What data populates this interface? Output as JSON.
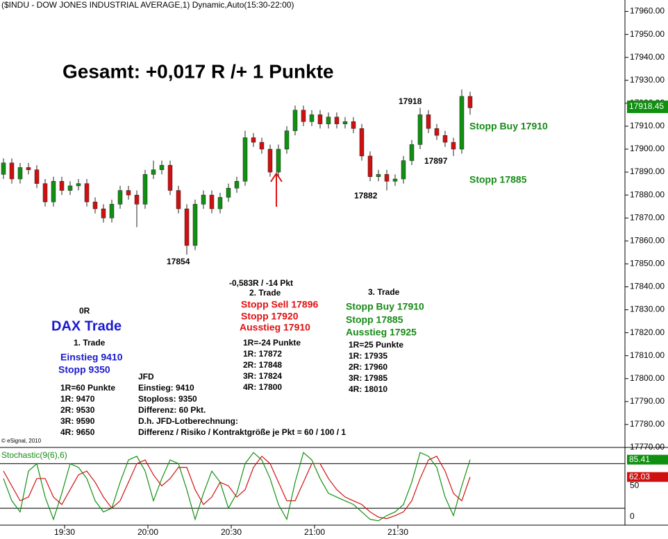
{
  "chart_data": [
    {
      "type": "candlestick",
      "title": "Gesamt: +0,017 R /+ 1 Punkte",
      "header": "($INDU - DOW JONES INDUSTRIAL AVERAGE,1) Dynamic,Auto(15:30-22:00)",
      "copyright": "© eSignal, 2010",
      "x": [
        "19:08",
        "19:11",
        "19:14",
        "19:17",
        "19:20",
        "19:23",
        "19:26",
        "19:29",
        "19:32",
        "19:35",
        "19:38",
        "19:41",
        "19:44",
        "19:47",
        "19:50",
        "19:53",
        "19:56",
        "19:59",
        "20:02",
        "20:05",
        "20:08",
        "20:11",
        "20:14",
        "20:17",
        "20:20",
        "20:23",
        "20:26",
        "20:29",
        "20:32",
        "20:35",
        "20:38",
        "20:41",
        "20:44",
        "20:47",
        "20:50",
        "20:53",
        "20:56",
        "20:59",
        "21:02",
        "21:05",
        "21:08",
        "21:11",
        "21:14",
        "21:17",
        "21:20",
        "21:23",
        "21:26",
        "21:29",
        "21:32",
        "21:35",
        "21:38",
        "21:41",
        "21:44",
        "21:47",
        "21:50",
        "21:53",
        "21:56"
      ],
      "open": [
        17889,
        17894,
        17887,
        17892,
        17891,
        17885,
        17877,
        17886,
        17882,
        17884,
        17885,
        17877,
        17874,
        17870,
        17876,
        17882,
        17880,
        17876,
        17889,
        17891,
        17893,
        17882,
        17874,
        17858,
        17876,
        17880,
        17874,
        17879,
        17883,
        17886,
        17905,
        17903,
        17900,
        17890,
        17900,
        17908,
        17917,
        17912,
        17915,
        17911,
        17914,
        17911,
        17912,
        17909,
        17897,
        17888,
        17889,
        17886,
        17887,
        17895,
        17902,
        17915,
        17909,
        17906,
        17903,
        17900,
        17923
      ],
      "high": [
        17896,
        17896,
        17894,
        17894,
        17893,
        17887,
        17888,
        17888,
        17886,
        17887,
        17887,
        17879,
        17876,
        17878,
        17884,
        17884,
        17882,
        17891,
        17895,
        17895,
        17895,
        17884,
        17876,
        17878,
        17882,
        17882,
        17881,
        17885,
        17888,
        17908,
        17907,
        17905,
        17902,
        17902,
        17910,
        17919,
        17919,
        17917,
        17917,
        17916,
        17916,
        17914,
        17914,
        17911,
        17899,
        17891,
        17891,
        17889,
        17897,
        17904,
        17918,
        17917,
        17911,
        17908,
        17905,
        17926,
        17925
      ],
      "low": [
        17887,
        17885,
        17885,
        17889,
        17883,
        17875,
        17875,
        17880,
        17880,
        17882,
        17875,
        17872,
        17868,
        17868,
        17874,
        17878,
        17866,
        17874,
        17887,
        17889,
        17880,
        17872,
        17854,
        17856,
        17874,
        17872,
        17872,
        17877,
        17881,
        17884,
        17901,
        17898,
        17888,
        17888,
        17898,
        17906,
        17910,
        17910,
        17909,
        17909,
        17909,
        17909,
        17907,
        17895,
        17886,
        17886,
        17882,
        17884,
        17885,
        17893,
        17900,
        17907,
        17904,
        17901,
        17897,
        17898,
        17915
      ],
      "close": [
        17894,
        17887,
        17892,
        17891,
        17885,
        17877,
        17886,
        17882,
        17884,
        17885,
        17877,
        17874,
        17870,
        17876,
        17882,
        17880,
        17876,
        17889,
        17891,
        17893,
        17882,
        17874,
        17858,
        17876,
        17880,
        17874,
        17879,
        17883,
        17886,
        17905,
        17903,
        17900,
        17890,
        17900,
        17908,
        17917,
        17912,
        17915,
        17911,
        17914,
        17911,
        17912,
        17909,
        17897,
        17888,
        17889,
        17886,
        17887,
        17895,
        17902,
        17915,
        17909,
        17906,
        17903,
        17900,
        17923,
        17918
      ],
      "up_color": "#109010",
      "down_color": "#d01010",
      "last_price": 17918.45,
      "ylim": [
        17770,
        17965
      ],
      "yticks": [
        {
          "value": 17960,
          "label": "17960.00"
        },
        {
          "value": 17950,
          "label": "17950.00"
        },
        {
          "value": 17940,
          "label": "17940.00"
        },
        {
          "value": 17930,
          "label": "17930.00"
        },
        {
          "value": 17920,
          "label": "17920.00"
        },
        {
          "value": 17910,
          "label": "17910.00"
        },
        {
          "value": 17900,
          "label": "17900.00"
        },
        {
          "value": 17890,
          "label": "17890.00"
        },
        {
          "value": 17880,
          "label": "17880.00"
        },
        {
          "value": 17870,
          "label": "17870.00"
        },
        {
          "value": 17860,
          "label": "17860.00"
        },
        {
          "value": 17850,
          "label": "17850.00"
        },
        {
          "value": 17840,
          "label": "17840.00"
        },
        {
          "value": 17830,
          "label": "17830.00"
        },
        {
          "value": 17820,
          "label": "17820.00"
        },
        {
          "value": 17810,
          "label": "17810.00"
        },
        {
          "value": 17800,
          "label": "17800.00"
        },
        {
          "value": 17790,
          "label": "17790.00"
        },
        {
          "value": 17780,
          "label": "17780.00"
        },
        {
          "value": 17770,
          "label": "17770.00"
        }
      ],
      "xticks": [
        "19:30",
        "20:00",
        "20:30",
        "21:00",
        "21:30"
      ],
      "annotations": [
        "17854",
        "17918",
        "17897",
        "17882",
        "Stopp Buy 17910",
        "Stopp 17885",
        "0R",
        "DAX Trade",
        "1. Trade",
        "Einstieg 9410",
        "Stopp 9350",
        "1R=60 Punkte",
        "1R: 9470",
        "2R: 9530",
        "3R: 9590",
        "4R: 9650",
        "JFD",
        "Einstieg: 9410",
        "Stoploss: 9350",
        "Differenz: 60 Pkt.",
        "D.h. JFD-Lotberechnung:",
        "Differenz / Risiko / Kontraktgröße je Pkt = 60 / 100 / 1",
        "-0,583R / -14 Pkt",
        "2. Trade",
        "Stopp Sell 17896",
        "Stopp 17920",
        "Ausstieg 17910",
        "1R=-24 Punkte",
        "1R: 17872",
        "2R: 17848",
        "3R: 17824",
        "4R: 17800",
        "3. Trade",
        "Stopp Buy 17910",
        "Stopp 17885",
        "Ausstieg 17925",
        "1R=25 Punkte",
        "1R: 17935",
        "2R: 17960",
        "3R: 17985",
        "4R: 18010"
      ]
    },
    {
      "type": "line",
      "title": "Stochastic(9(6),6)",
      "ylim": [
        0,
        100
      ],
      "yticks": [
        0,
        50
      ],
      "levels": [
        80,
        20
      ],
      "series": [
        {
          "color": "#109010",
          "values": [
            60,
            30,
            15,
            70,
            80,
            35,
            5,
            40,
            80,
            75,
            60,
            30,
            15,
            20,
            55,
            85,
            90,
            70,
            30,
            60,
            85,
            80,
            45,
            5,
            40,
            70,
            55,
            20,
            40,
            80,
            95,
            85,
            60,
            25,
            5,
            55,
            95,
            85,
            60,
            40,
            35,
            30,
            25,
            15,
            5,
            3,
            10,
            15,
            25,
            55,
            95,
            90,
            75,
            35,
            10,
            50,
            85.41
          ]
        },
        {
          "color": "#d01010",
          "values": [
            70,
            50,
            30,
            35,
            60,
            60,
            35,
            25,
            45,
            65,
            70,
            55,
            35,
            20,
            30,
            55,
            80,
            85,
            65,
            50,
            60,
            75,
            75,
            45,
            25,
            35,
            55,
            50,
            35,
            45,
            75,
            90,
            80,
            55,
            30,
            30,
            55,
            80,
            80,
            60,
            45,
            35,
            30,
            25,
            15,
            8,
            6,
            10,
            15,
            30,
            60,
            85,
            90,
            70,
            40,
            30,
            62.03
          ]
        }
      ]
    }
  ]
}
